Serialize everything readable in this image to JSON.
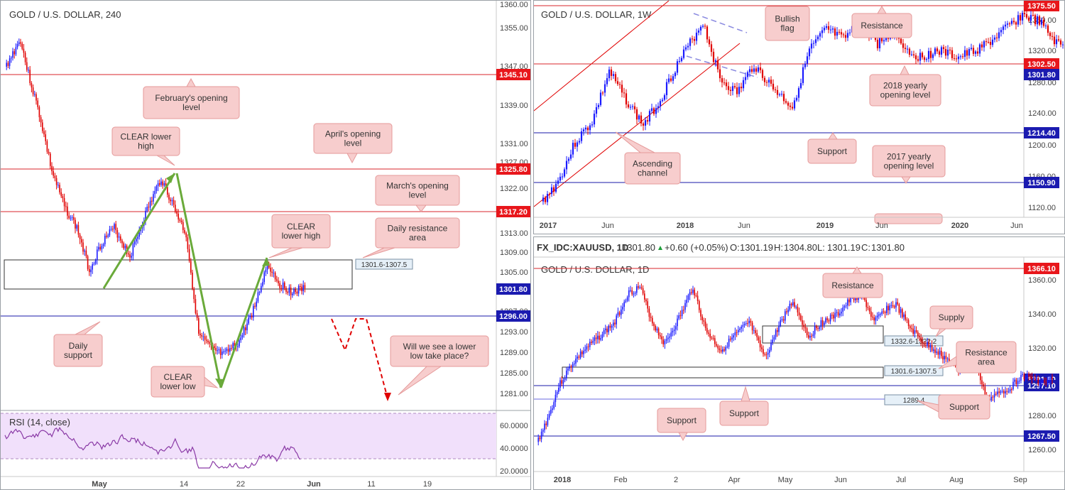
{
  "colors": {
    "up": "#1a1aff",
    "down": "#e00000",
    "resistance": "#d9262b",
    "support": "#1a1aa8",
    "note_fill": "#f7cdcd",
    "note_stroke": "#e59a9a",
    "arrow_green": "#6aaa3a",
    "rsi_bg": "#f1e0fb",
    "rsi_line": "#8a3aa6"
  },
  "left": {
    "title": "GOLD / U.S. DOLLAR, 240",
    "price_ticks": [
      "1360.00",
      "1355.00",
      "1347.00",
      "1339.00",
      "1331.00",
      "1327.00",
      "1322.00",
      "1313.00",
      "1309.00",
      "1305.00",
      "1297.00",
      "1293.00",
      "1289.00",
      "1285.00",
      "1281.00"
    ],
    "date_ticks": [
      "May",
      "14",
      "22",
      "Jun",
      "11",
      "19"
    ],
    "rsi_label": "RSI (14, close)",
    "rsi_ticks": [
      "60.0000",
      "40.0000",
      "20.0000"
    ],
    "level_labels": [
      {
        "text": "1345.10",
        "color": "red"
      },
      {
        "text": "1325.80",
        "color": "red"
      },
      {
        "text": "1317.20",
        "color": "red"
      },
      {
        "text": "1301.80",
        "color": "blue"
      },
      {
        "text": "1296.00",
        "color": "blue"
      }
    ],
    "zone_label": "1301.6-1307.5",
    "notes": [
      {
        "lines": [
          "February's opening",
          "level"
        ]
      },
      {
        "lines": [
          "CLEAR lower",
          "high"
        ]
      },
      {
        "lines": [
          "April's opening",
          "level"
        ]
      },
      {
        "lines": [
          "March's opening",
          "level"
        ]
      },
      {
        "lines": [
          "CLEAR",
          "lower high"
        ]
      },
      {
        "lines": [
          "Daily resistance",
          "area"
        ]
      },
      {
        "lines": [
          "Daily",
          "support"
        ]
      },
      {
        "lines": [
          "CLEAR",
          "lower low"
        ]
      },
      {
        "lines": [
          "Will we see a lower",
          "low take place?"
        ]
      }
    ]
  },
  "weekly": {
    "title": "GOLD / U.S. DOLLAR, 1W",
    "price_ticks": [
      "1360.00",
      "1320.00",
      "1280.00",
      "1240.00",
      "1200.00",
      "1160.00",
      "1120.00"
    ],
    "date_ticks": [
      "2017",
      "Jun",
      "2018",
      "Jun",
      "2019",
      "Jun",
      "2020",
      "Jun"
    ],
    "level_labels": [
      {
        "text": "1375.50",
        "color": "red"
      },
      {
        "text": "1302.50",
        "color": "red"
      },
      {
        "text": "1301.80",
        "color": "blue"
      },
      {
        "text": "1214.40",
        "color": "blue"
      },
      {
        "text": "1150.90",
        "color": "blue"
      }
    ],
    "notes": [
      {
        "lines": [
          "Bullish",
          "flag"
        ]
      },
      {
        "lines": [
          "Resistance"
        ]
      },
      {
        "lines": [
          "2018 yearly",
          "opening level"
        ]
      },
      {
        "lines": [
          "Support"
        ]
      },
      {
        "lines": [
          "2017 yearly",
          "opening level"
        ]
      },
      {
        "lines": [
          "Ascending",
          "channel"
        ]
      }
    ]
  },
  "daily": {
    "header": {
      "symbol": "FX_IDC:XAUUSD, 1D",
      "last": "1301.80",
      "change": "+0.60 (+0.05%)",
      "o_label": "O:",
      "o": "1301.19",
      "h_label": "H:",
      "h": "1304.80",
      "l_label": "L:",
      "l": "1301.19",
      "c_label": "C:",
      "c": "1301.80"
    },
    "title": "GOLD / U.S. DOLLAR, 1D",
    "price_ticks": [
      "1360.00",
      "1340.00",
      "1320.00",
      "1300.00",
      "1280.00",
      "1260.00"
    ],
    "date_ticks": [
      "2018",
      "Feb",
      "2",
      "Apr",
      "May",
      "Jun",
      "Jul",
      "Aug",
      "Sep"
    ],
    "level_labels": [
      {
        "text": "1366.10",
        "color": "red"
      },
      {
        "text": "1301.80",
        "color": "blue"
      },
      {
        "text": "1297.10",
        "color": "blue"
      },
      {
        "text": "1267.50",
        "color": "blue"
      }
    ],
    "zone_labels": [
      "1332.6-1322.2",
      "1301.6-1307.5",
      "1289.4"
    ],
    "notes": [
      {
        "lines": [
          "Resistance"
        ]
      },
      {
        "lines": [
          "Supply"
        ]
      },
      {
        "lines": [
          "Resistance",
          "area"
        ]
      },
      {
        "lines": [
          "Support"
        ]
      },
      {
        "lines": [
          "Support"
        ]
      },
      {
        "lines": [
          "Support"
        ]
      }
    ]
  }
}
